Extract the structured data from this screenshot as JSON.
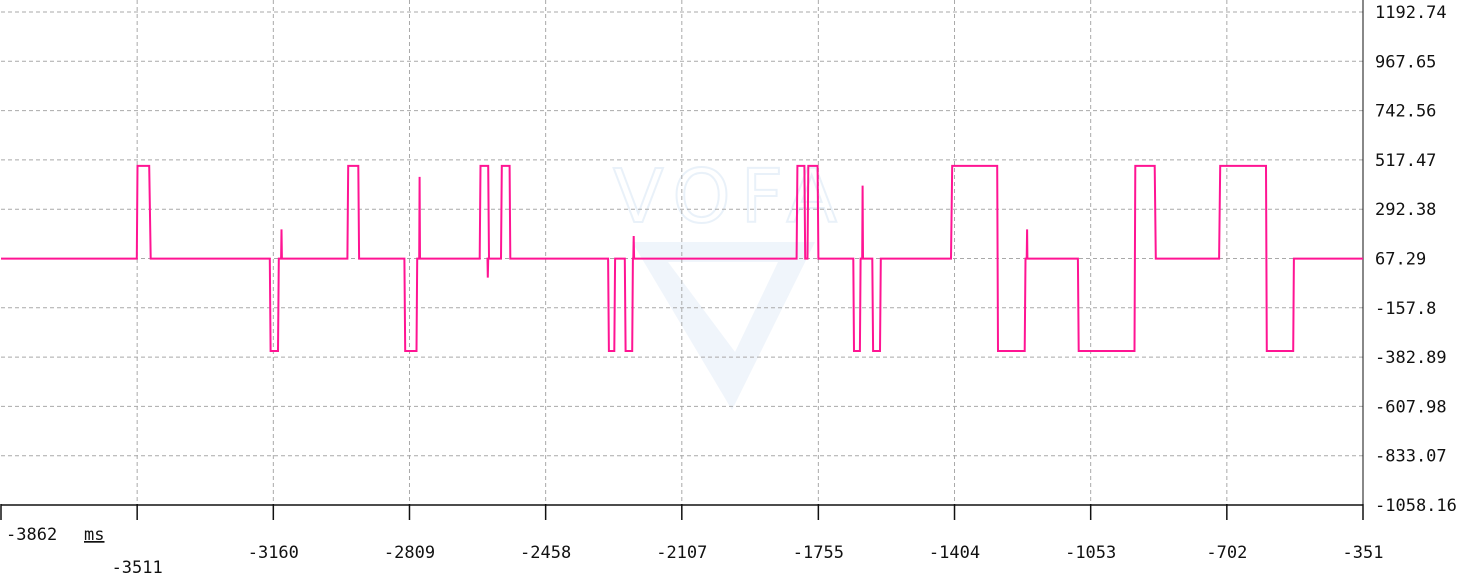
{
  "app": {
    "watermark_text": "VOFA"
  },
  "chart_data": {
    "type": "line",
    "xunit": "ms",
    "xlim": [
      -3862,
      -351
    ],
    "ylim": [
      -1058.16,
      1192.74
    ],
    "grid": true,
    "x_ticks": [
      -3862,
      -3511,
      -3160,
      -2809,
      -2458,
      -2107,
      -1755,
      -1404,
      -1053,
      -702,
      -351
    ],
    "y_ticks": [
      1192.74,
      967.65,
      742.56,
      517.47,
      292.38,
      67.29,
      -157.8,
      -382.89,
      -607.98,
      -833.07,
      -1058.16
    ],
    "x_tick_labels": [
      "-3862",
      "-3511",
      "-3160",
      "-2809",
      "-2458",
      "-2107",
      "-1755",
      "-1404",
      "-1053",
      "-702",
      "-351"
    ],
    "y_tick_labels": [
      "1192.74",
      "967.65",
      "742.56",
      "517.47",
      "292.38",
      "67.29",
      "-157.8",
      "-382.89",
      "-607.98",
      "-833.07",
      "-1058.16"
    ],
    "series": [
      {
        "color": "#ff1493",
        "points": [
          [
            -3862,
            67
          ],
          [
            -3512,
            67
          ],
          [
            -3510,
            490
          ],
          [
            -3480,
            490
          ],
          [
            -3476,
            67
          ],
          [
            -3169,
            67
          ],
          [
            -3167,
            -355
          ],
          [
            -3148,
            -355
          ],
          [
            -3146,
            67
          ],
          [
            -3140,
            67
          ],
          [
            -3139,
            200
          ],
          [
            -3138,
            67
          ],
          [
            -2969,
            67
          ],
          [
            -2967,
            490
          ],
          [
            -2941,
            490
          ],
          [
            -2939,
            67
          ],
          [
            -2822,
            67
          ],
          [
            -2820,
            -355
          ],
          [
            -2791,
            -355
          ],
          [
            -2789,
            67
          ],
          [
            -2784,
            67
          ],
          [
            -2783,
            440
          ],
          [
            -2782,
            67
          ],
          [
            -2628,
            67
          ],
          [
            -2626,
            490
          ],
          [
            -2606,
            490
          ],
          [
            -2604,
            67
          ],
          [
            -2608,
            67
          ],
          [
            -2607,
            -20
          ],
          [
            -2606,
            67
          ],
          [
            -2573,
            67
          ],
          [
            -2571,
            490
          ],
          [
            -2551,
            490
          ],
          [
            -2549,
            67
          ],
          [
            -2297,
            67
          ],
          [
            -2295,
            -355
          ],
          [
            -2281,
            -355
          ],
          [
            -2279,
            67
          ],
          [
            -2254,
            67
          ],
          [
            -2252,
            -355
          ],
          [
            -2235,
            -355
          ],
          [
            -2233,
            67
          ],
          [
            -2232,
            67
          ],
          [
            -2231,
            170
          ],
          [
            -2230,
            67
          ],
          [
            -1811,
            67
          ],
          [
            -1809,
            490
          ],
          [
            -1791,
            490
          ],
          [
            -1789,
            67
          ],
          [
            -1783,
            67
          ],
          [
            -1781,
            490
          ],
          [
            -1757,
            490
          ],
          [
            -1755,
            67
          ],
          [
            -1665,
            67
          ],
          [
            -1663,
            -355
          ],
          [
            -1648,
            -355
          ],
          [
            -1646,
            67
          ],
          [
            -1642,
            67
          ],
          [
            -1641,
            400
          ],
          [
            -1640,
            67
          ],
          [
            -1616,
            67
          ],
          [
            -1614,
            -355
          ],
          [
            -1596,
            -355
          ],
          [
            -1594,
            67
          ],
          [
            -1413,
            67
          ],
          [
            -1410,
            490
          ],
          [
            -1294,
            490
          ],
          [
            -1292,
            -355
          ],
          [
            -1223,
            -355
          ],
          [
            -1221,
            67
          ],
          [
            -1218,
            67
          ],
          [
            -1217,
            200
          ],
          [
            -1216,
            67
          ],
          [
            -1086,
            67
          ],
          [
            -1084,
            -355
          ],
          [
            -940,
            -355
          ],
          [
            -938,
            490
          ],
          [
            -888,
            490
          ],
          [
            -885,
            67
          ],
          [
            -722,
            67
          ],
          [
            -719,
            490
          ],
          [
            -601,
            490
          ],
          [
            -599,
            -355
          ],
          [
            -531,
            -355
          ],
          [
            -529,
            67
          ],
          [
            -351,
            67
          ]
        ]
      }
    ]
  }
}
